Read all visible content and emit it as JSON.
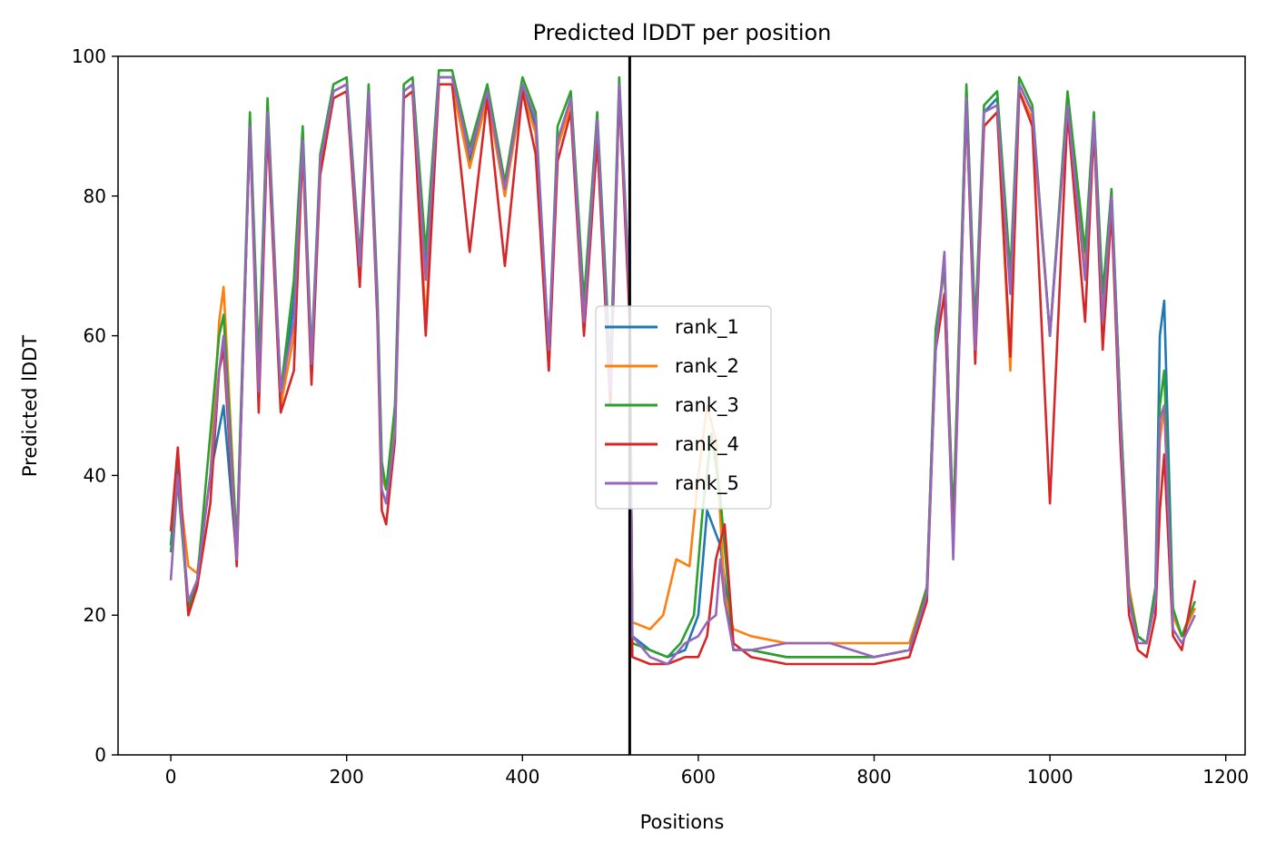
{
  "chart_data": {
    "type": "line",
    "title": "Predicted lDDT per position",
    "xlabel": "Positions",
    "ylabel": "Predicted lDDT",
    "xlim": [
      -60,
      1222
    ],
    "ylim": [
      0,
      100
    ],
    "xticks": [
      0,
      200,
      400,
      600,
      800,
      1000,
      1200
    ],
    "yticks": [
      0,
      20,
      40,
      60,
      80,
      100
    ],
    "grid": false,
    "legend_position": "center",
    "chain_boundary_x": 522,
    "series": [
      {
        "name": "rank_1",
        "color": "#1f77b4",
        "x": [
          0,
          8,
          20,
          30,
          45,
          60,
          75,
          90,
          100,
          110,
          125,
          140,
          150,
          160,
          170,
          185,
          200,
          215,
          225,
          235,
          240,
          245,
          255,
          265,
          275,
          290,
          305,
          320,
          340,
          360,
          380,
          400,
          415,
          430,
          440,
          455,
          470,
          485,
          500,
          510,
          522,
          525,
          545,
          565,
          585,
          600,
          610,
          625,
          640,
          660,
          700,
          750,
          800,
          840,
          860,
          870,
          880,
          890,
          905,
          915,
          925,
          940,
          955,
          965,
          980,
          1000,
          1020,
          1040,
          1050,
          1060,
          1070,
          1080,
          1090,
          1100,
          1110,
          1120,
          1125,
          1130,
          1140,
          1150,
          1165
        ],
        "y": [
          30,
          42,
          20,
          25,
          40,
          50,
          28,
          90,
          55,
          93,
          50,
          65,
          88,
          55,
          85,
          95,
          96,
          70,
          95,
          65,
          40,
          38,
          48,
          95,
          96,
          70,
          97,
          97,
          85,
          95,
          80,
          96,
          90,
          55,
          88,
          93,
          62,
          90,
          50,
          95,
          65,
          17,
          15,
          14,
          15,
          20,
          35,
          30,
          15,
          15,
          14,
          14,
          14,
          15,
          24,
          60,
          70,
          32,
          95,
          60,
          92,
          94,
          68,
          96,
          92,
          60,
          94,
          70,
          90,
          65,
          80,
          50,
          22,
          17,
          16,
          24,
          60,
          65,
          20,
          17,
          21
        ]
      },
      {
        "name": "rank_2",
        "color": "#ff7f0e",
        "x": [
          0,
          8,
          20,
          30,
          45,
          55,
          60,
          75,
          90,
          100,
          110,
          125,
          140,
          150,
          160,
          170,
          185,
          200,
          215,
          225,
          235,
          240,
          245,
          255,
          265,
          275,
          290,
          305,
          320,
          340,
          360,
          380,
          400,
          415,
          430,
          440,
          455,
          470,
          485,
          500,
          510,
          522,
          525,
          545,
          560,
          575,
          590,
          600,
          610,
          620,
          630,
          640,
          660,
          700,
          750,
          800,
          840,
          860,
          870,
          880,
          890,
          905,
          915,
          925,
          940,
          955,
          965,
          980,
          1000,
          1020,
          1040,
          1050,
          1060,
          1070,
          1080,
          1090,
          1100,
          1110,
          1120,
          1125,
          1130,
          1140,
          1150,
          1165
        ],
        "y": [
          32,
          40,
          27,
          26,
          40,
          62,
          67,
          30,
          90,
          55,
          92,
          50,
          60,
          87,
          55,
          84,
          94,
          95,
          70,
          94,
          65,
          40,
          38,
          48,
          94,
          95,
          62,
          96,
          96,
          84,
          94,
          80,
          95,
          89,
          57,
          87,
          93,
          62,
          90,
          52,
          95,
          64,
          19,
          18,
          20,
          28,
          27,
          40,
          50,
          45,
          23,
          18,
          17,
          16,
          16,
          16,
          16,
          24,
          60,
          70,
          32,
          93,
          58,
          90,
          92,
          55,
          95,
          91,
          60,
          93,
          70,
          90,
          65,
          80,
          50,
          24,
          17,
          16,
          22,
          45,
          50,
          20,
          17,
          21
        ]
      },
      {
        "name": "rank_3",
        "color": "#2ca02c",
        "x": [
          0,
          8,
          20,
          30,
          45,
          55,
          60,
          75,
          90,
          100,
          110,
          125,
          140,
          150,
          160,
          170,
          185,
          200,
          215,
          225,
          235,
          240,
          245,
          255,
          265,
          275,
          290,
          305,
          320,
          340,
          360,
          380,
          400,
          415,
          430,
          440,
          455,
          470,
          485,
          500,
          510,
          522,
          525,
          545,
          565,
          580,
          595,
          605,
          615,
          625,
          640,
          660,
          700,
          750,
          800,
          840,
          860,
          870,
          880,
          890,
          905,
          915,
          925,
          940,
          955,
          965,
          980,
          1000,
          1020,
          1040,
          1050,
          1060,
          1070,
          1080,
          1090,
          1100,
          1110,
          1120,
          1125,
          1130,
          1140,
          1150,
          1165
        ],
        "y": [
          29,
          39,
          21,
          25,
          46,
          60,
          63,
          30,
          92,
          56,
          94,
          52,
          68,
          90,
          57,
          86,
          96,
          97,
          71,
          96,
          66,
          42,
          38,
          50,
          96,
          97,
          72,
          98,
          98,
          87,
          96,
          82,
          97,
          92,
          58,
          90,
          95,
          65,
          92,
          55,
          97,
          66,
          16,
          15,
          14,
          16,
          20,
          35,
          46,
          37,
          15,
          15,
          14,
          14,
          14,
          15,
          24,
          61,
          70,
          33,
          96,
          61,
          93,
          95,
          69,
          97,
          93,
          60,
          95,
          72,
          92,
          66,
          81,
          50,
          23,
          17,
          16,
          24,
          50,
          55,
          21,
          17,
          22
        ]
      },
      {
        "name": "rank_4",
        "color": "#d62728",
        "x": [
          0,
          8,
          20,
          30,
          45,
          55,
          60,
          75,
          90,
          100,
          110,
          125,
          140,
          150,
          160,
          170,
          185,
          200,
          215,
          225,
          235,
          240,
          245,
          255,
          265,
          275,
          290,
          305,
          320,
          340,
          360,
          380,
          400,
          415,
          430,
          440,
          455,
          470,
          485,
          500,
          510,
          522,
          525,
          545,
          565,
          585,
          600,
          610,
          620,
          630,
          640,
          660,
          700,
          750,
          800,
          840,
          860,
          870,
          880,
          890,
          905,
          915,
          925,
          940,
          955,
          965,
          980,
          1000,
          1020,
          1040,
          1050,
          1060,
          1070,
          1080,
          1090,
          1100,
          1110,
          1120,
          1125,
          1130,
          1140,
          1150,
          1165
        ],
        "y": [
          32,
          44,
          20,
          24,
          36,
          55,
          58,
          27,
          90,
          49,
          90,
          49,
          55,
          87,
          53,
          83,
          94,
          95,
          67,
          94,
          62,
          35,
          33,
          45,
          94,
          95,
          60,
          96,
          96,
          72,
          94,
          70,
          95,
          86,
          55,
          85,
          92,
          60,
          88,
          50,
          95,
          62,
          14,
          13,
          13,
          14,
          14,
          17,
          28,
          33,
          16,
          14,
          13,
          13,
          13,
          14,
          22,
          58,
          66,
          30,
          93,
          56,
          90,
          92,
          57,
          95,
          90,
          36,
          92,
          62,
          90,
          58,
          78,
          45,
          20,
          15,
          14,
          20,
          35,
          43,
          17,
          15,
          25
        ]
      },
      {
        "name": "rank_5",
        "color": "#9467bd",
        "x": [
          0,
          8,
          20,
          30,
          45,
          55,
          60,
          75,
          90,
          100,
          110,
          125,
          140,
          150,
          160,
          170,
          185,
          200,
          215,
          225,
          235,
          240,
          245,
          255,
          265,
          275,
          290,
          305,
          320,
          340,
          360,
          380,
          400,
          415,
          430,
          440,
          455,
          470,
          485,
          500,
          510,
          522,
          525,
          545,
          565,
          585,
          600,
          610,
          620,
          625,
          630,
          640,
          660,
          700,
          750,
          800,
          840,
          860,
          870,
          880,
          890,
          905,
          915,
          925,
          940,
          955,
          965,
          980,
          1000,
          1020,
          1040,
          1050,
          1060,
          1070,
          1080,
          1090,
          1100,
          1110,
          1120,
          1125,
          1130,
          1140,
          1150,
          1165
        ],
        "y": [
          25,
          40,
          22,
          25,
          40,
          55,
          60,
          28,
          90,
          52,
          92,
          52,
          62,
          88,
          56,
          85,
          95,
          96,
          70,
          95,
          64,
          38,
          36,
          46,
          95,
          96,
          68,
          97,
          97,
          86,
          95,
          81,
          96,
          91,
          58,
          88,
          94,
          62,
          91,
          52,
          96,
          65,
          17,
          14,
          13,
          16,
          17,
          19,
          20,
          28,
          22,
          15,
          15,
          16,
          16,
          14,
          15,
          23,
          58,
          72,
          28,
          94,
          58,
          92,
          93,
          66,
          96,
          92,
          60,
          93,
          68,
          91,
          62,
          80,
          48,
          22,
          16,
          16,
          22,
          48,
          50,
          18,
          16,
          20
        ]
      }
    ]
  }
}
